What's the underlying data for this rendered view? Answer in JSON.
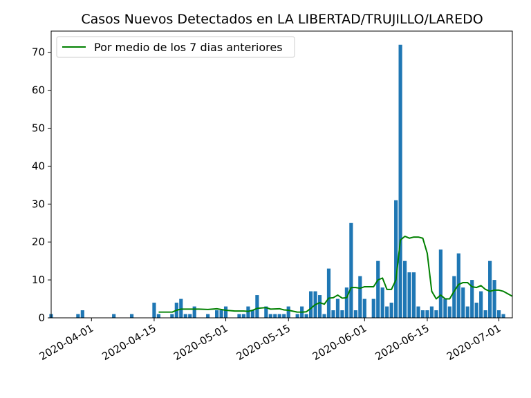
{
  "chart_data": {
    "type": "bar",
    "title": "Casos Nuevos Detectados en LA LIBERTAD/TRUJILLO/LAREDO",
    "xlabel": "",
    "ylabel": "",
    "ylim": [
      0,
      75.6
    ],
    "xlim": [
      "2020-03-23",
      "2020-07-04"
    ],
    "grid": false,
    "legend_placement": "top-left",
    "bar_color": "#1f77b4",
    "line_color": "#008000",
    "x_ticks": [
      "2020-04-01",
      "2020-04-15",
      "2020-05-01",
      "2020-05-15",
      "2020-06-01",
      "2020-06-15",
      "2020-07-01"
    ],
    "y_ticks": [
      0,
      10,
      20,
      30,
      40,
      50,
      60,
      70
    ],
    "y_tick_labels": [
      "0",
      "10",
      "20",
      "30",
      "40",
      "50",
      "60",
      "70"
    ],
    "series": [
      {
        "name": "",
        "kind": "bar",
        "points": [
          [
            "2020-03-23",
            1
          ],
          [
            "2020-03-29",
            1
          ],
          [
            "2020-03-30",
            2
          ],
          [
            "2020-04-06",
            1
          ],
          [
            "2020-04-10",
            1
          ],
          [
            "2020-04-15",
            4
          ],
          [
            "2020-04-16",
            1
          ],
          [
            "2020-04-19",
            1
          ],
          [
            "2020-04-20",
            4
          ],
          [
            "2020-04-21",
            5
          ],
          [
            "2020-04-22",
            1
          ],
          [
            "2020-04-23",
            1
          ],
          [
            "2020-04-24",
            3
          ],
          [
            "2020-04-27",
            1
          ],
          [
            "2020-04-29",
            2
          ],
          [
            "2020-04-30",
            2
          ],
          [
            "2020-05-01",
            3
          ],
          [
            "2020-05-04",
            1
          ],
          [
            "2020-05-05",
            1
          ],
          [
            "2020-05-06",
            3
          ],
          [
            "2020-05-07",
            2
          ],
          [
            "2020-05-08",
            6
          ],
          [
            "2020-05-10",
            3
          ],
          [
            "2020-05-11",
            1
          ],
          [
            "2020-05-12",
            1
          ],
          [
            "2020-05-13",
            1
          ],
          [
            "2020-05-14",
            1
          ],
          [
            "2020-05-15",
            3
          ],
          [
            "2020-05-17",
            1
          ],
          [
            "2020-05-18",
            3
          ],
          [
            "2020-05-19",
            1
          ],
          [
            "2020-05-20",
            7
          ],
          [
            "2020-05-21",
            7
          ],
          [
            "2020-05-22",
            6
          ],
          [
            "2020-05-23",
            1
          ],
          [
            "2020-05-24",
            13
          ],
          [
            "2020-05-25",
            2
          ],
          [
            "2020-05-26",
            5
          ],
          [
            "2020-05-27",
            2
          ],
          [
            "2020-05-28",
            8
          ],
          [
            "2020-05-29",
            25
          ],
          [
            "2020-05-30",
            2
          ],
          [
            "2020-05-31",
            11
          ],
          [
            "2020-06-01",
            5
          ],
          [
            "2020-06-03",
            5
          ],
          [
            "2020-06-04",
            15
          ],
          [
            "2020-06-05",
            8
          ],
          [
            "2020-06-06",
            3
          ],
          [
            "2020-06-07",
            4
          ],
          [
            "2020-06-08",
            31
          ],
          [
            "2020-06-09",
            72
          ],
          [
            "2020-06-10",
            15
          ],
          [
            "2020-06-11",
            12
          ],
          [
            "2020-06-12",
            12
          ],
          [
            "2020-06-13",
            3
          ],
          [
            "2020-06-14",
            2
          ],
          [
            "2020-06-15",
            2
          ],
          [
            "2020-06-16",
            3
          ],
          [
            "2020-06-17",
            2
          ],
          [
            "2020-06-18",
            18
          ],
          [
            "2020-06-19",
            5
          ],
          [
            "2020-06-20",
            3
          ],
          [
            "2020-06-21",
            11
          ],
          [
            "2020-06-22",
            17
          ],
          [
            "2020-06-23",
            8
          ],
          [
            "2020-06-24",
            3
          ],
          [
            "2020-06-25",
            10
          ],
          [
            "2020-06-26",
            4
          ],
          [
            "2020-06-27",
            7
          ],
          [
            "2020-06-28",
            2
          ],
          [
            "2020-06-29",
            15
          ],
          [
            "2020-06-30",
            10
          ],
          [
            "2020-07-01",
            2
          ],
          [
            "2020-07-02",
            1
          ]
        ]
      },
      {
        "name": "Por medio de los 7 dias anteriores",
        "kind": "line",
        "points": [
          [
            "2020-04-16",
            1.5
          ],
          [
            "2020-04-19",
            1.5
          ],
          [
            "2020-04-20",
            2.0
          ],
          [
            "2020-04-21",
            2.3
          ],
          [
            "2020-04-23",
            2.3
          ],
          [
            "2020-04-25",
            2.3
          ],
          [
            "2020-04-27",
            2.2
          ],
          [
            "2020-04-29",
            2.4
          ],
          [
            "2020-05-01",
            2.0
          ],
          [
            "2020-05-03",
            1.8
          ],
          [
            "2020-05-05",
            1.8
          ],
          [
            "2020-05-06",
            1.7
          ],
          [
            "2020-05-07",
            2.0
          ],
          [
            "2020-05-08",
            2.5
          ],
          [
            "2020-05-10",
            2.7
          ],
          [
            "2020-05-11",
            2.3
          ],
          [
            "2020-05-13",
            2.4
          ],
          [
            "2020-05-14",
            2.1
          ],
          [
            "2020-05-15",
            2.0
          ],
          [
            "2020-05-17",
            1.5
          ],
          [
            "2020-05-18",
            1.5
          ],
          [
            "2020-05-19",
            1.6
          ],
          [
            "2020-05-20",
            2.5
          ],
          [
            "2020-05-21",
            3.5
          ],
          [
            "2020-05-22",
            4.0
          ],
          [
            "2020-05-23",
            3.6
          ],
          [
            "2020-05-24",
            5.2
          ],
          [
            "2020-05-25",
            5.3
          ],
          [
            "2020-05-26",
            6.0
          ],
          [
            "2020-05-27",
            5.2
          ],
          [
            "2020-05-28",
            5.3
          ],
          [
            "2020-05-29",
            8.0
          ],
          [
            "2020-05-30",
            8.0
          ],
          [
            "2020-05-31",
            7.8
          ],
          [
            "2020-06-01",
            8.2
          ],
          [
            "2020-06-02",
            8.2
          ],
          [
            "2020-06-03",
            8.2
          ],
          [
            "2020-06-04",
            10.0
          ],
          [
            "2020-06-05",
            10.5
          ],
          [
            "2020-06-06",
            7.5
          ],
          [
            "2020-06-07",
            7.5
          ],
          [
            "2020-06-08",
            10.0
          ],
          [
            "2020-06-09",
            20.5
          ],
          [
            "2020-06-10",
            21.5
          ],
          [
            "2020-06-11",
            21.0
          ],
          [
            "2020-06-12",
            21.3
          ],
          [
            "2020-06-13",
            21.3
          ],
          [
            "2020-06-14",
            21.0
          ],
          [
            "2020-06-15",
            17.0
          ],
          [
            "2020-06-16",
            7.0
          ],
          [
            "2020-06-17",
            5.0
          ],
          [
            "2020-06-18",
            6.0
          ],
          [
            "2020-06-19",
            5.0
          ],
          [
            "2020-06-20",
            5.0
          ],
          [
            "2020-06-21",
            7.0
          ],
          [
            "2020-06-22",
            8.8
          ],
          [
            "2020-06-23",
            9.3
          ],
          [
            "2020-06-24",
            9.3
          ],
          [
            "2020-06-25",
            8.2
          ],
          [
            "2020-06-26",
            8.0
          ],
          [
            "2020-06-27",
            8.5
          ],
          [
            "2020-06-28",
            7.5
          ],
          [
            "2020-06-29",
            7.0
          ],
          [
            "2020-06-30",
            7.3
          ],
          [
            "2020-07-01",
            7.3
          ],
          [
            "2020-07-02",
            7.0
          ],
          [
            "2020-07-04",
            5.7
          ]
        ]
      }
    ]
  }
}
